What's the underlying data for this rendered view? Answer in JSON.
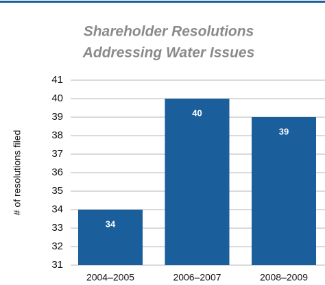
{
  "chart_data": {
    "type": "bar",
    "title": [
      "Shareholder Resolutions",
      "Addressing Water Issues"
    ],
    "y_label": "# of resolutions filed",
    "categories": [
      "2004–2005",
      "2006–2007",
      "2008–2009"
    ],
    "values": [
      34,
      40,
      39
    ],
    "color": "#1a5e9c",
    "ylim": [
      31,
      41
    ],
    "yticks": [
      31,
      32,
      33,
      34,
      35,
      36,
      37,
      38,
      39,
      40,
      41
    ],
    "grid": true
  }
}
